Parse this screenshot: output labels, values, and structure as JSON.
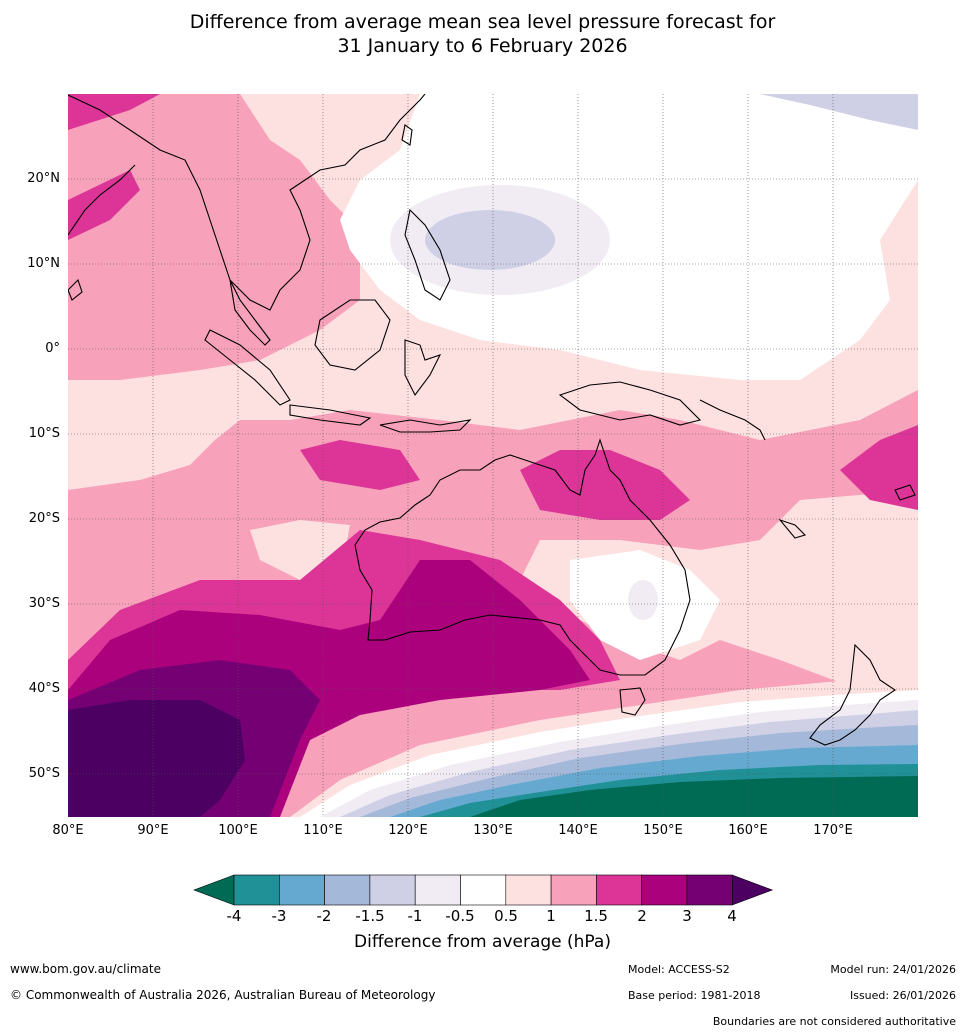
{
  "title": {
    "line1": "Difference from average mean sea level pressure forecast for",
    "line2": "31 January to 6 February 2026"
  },
  "map": {
    "lat_labels": [
      "20°N",
      "10°N",
      "0°",
      "10°S",
      "20°S",
      "30°S",
      "40°S",
      "50°S"
    ],
    "lon_labels": [
      "80°E",
      "90°E",
      "100°E",
      "110°E",
      "120°E",
      "130°E",
      "140°E",
      "150°E",
      "160°E",
      "170°E"
    ]
  },
  "colorbar": {
    "label": "Difference from average (hPa)",
    "ticks": [
      "-4",
      "-3",
      "-2",
      "-1.5",
      "-1",
      "-0.5",
      "0.5",
      "1",
      "1.5",
      "2",
      "3",
      "4"
    ],
    "colors": [
      "#006b55",
      "#1f9197",
      "#66a9d0",
      "#a4b8d9",
      "#cfd0e6",
      "#f1ebf3",
      "#ffffff",
      "#fde0e0",
      "#f7a1bb",
      "#dc3597",
      "#ac017d",
      "#750074",
      "#4b0062"
    ]
  },
  "footer": {
    "website": "www.bom.gov.au/climate",
    "copyright": "© Commonwealth of Australia 2026, Australian Bureau of Meteorology",
    "model": "Model: ACCESS-S2",
    "model_run": "Model run: 24/01/2026",
    "base_period": "Base period: 1981-2018",
    "issued": "Issued: 26/01/2026",
    "disclaimer": "Boundaries are not considered authoritative"
  }
}
